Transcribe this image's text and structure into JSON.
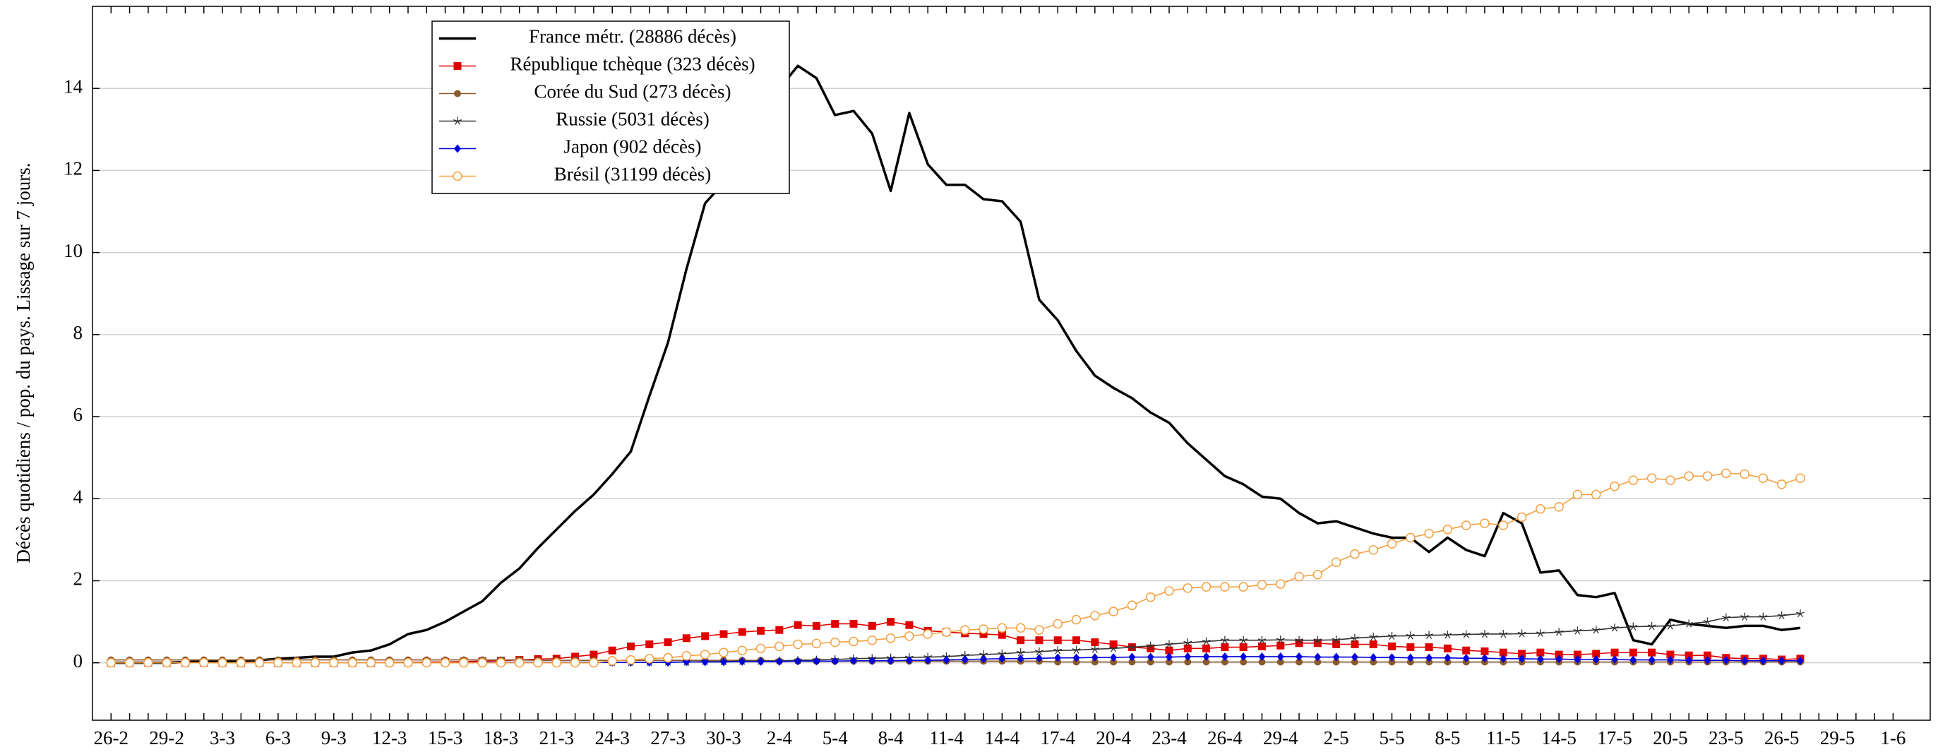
{
  "chart_data": {
    "type": "line",
    "y_label": "Décès quotidiens / pop. du pays. Lissage sur 7 jours.",
    "categories": [
      "26-2",
      null,
      null,
      "29-2",
      null,
      null,
      "3-3",
      null,
      null,
      "6-3",
      null,
      null,
      "9-3",
      null,
      null,
      "12-3",
      null,
      null,
      "15-3",
      null,
      null,
      "18-3",
      null,
      null,
      "21-3",
      null,
      null,
      "24-3",
      null,
      null,
      "27-3",
      null,
      null,
      "30-3",
      null,
      null,
      "2-4",
      null,
      null,
      "5-4",
      null,
      null,
      "8-4",
      null,
      null,
      "11-4",
      null,
      null,
      "14-4",
      null,
      null,
      "17-4",
      null,
      null,
      "20-4",
      null,
      null,
      "23-4",
      null,
      null,
      "26-4",
      null,
      null,
      "29-4",
      null,
      null,
      "2-5",
      null,
      null,
      "5-5",
      null,
      null,
      "8-5",
      null,
      null,
      "11-5",
      null,
      null,
      "14-5",
      null,
      null,
      "17-5",
      null,
      null,
      "20-5",
      null,
      null,
      "23-5",
      null,
      null,
      "26-5",
      null,
      null,
      "29-5",
      null,
      null,
      "1-6"
    ],
    "ylim": [
      -1.4,
      16
    ],
    "yticks": [
      0,
      2,
      4,
      6,
      8,
      10,
      12,
      14
    ],
    "grid": true,
    "legend": "upper left",
    "series": [
      {
        "name": "France métr. (28886 décès)",
        "color": "#000000",
        "marker": "none",
        "values": [
          0,
          0,
          0,
          0,
          0.02,
          0.03,
          0.03,
          0.05,
          0.06,
          0.1,
          0.12,
          0.15,
          0.15,
          0.25,
          0.3,
          0.45,
          0.7,
          0.8,
          1.0,
          1.25,
          1.5,
          1.95,
          2.3,
          2.8,
          3.25,
          3.7,
          4.1,
          4.6,
          5.15,
          6.5,
          7.8,
          9.6,
          11.2,
          11.7,
          12.4,
          13.2,
          14.0,
          14.55,
          14.25,
          13.35,
          13.45,
          12.9,
          11.5,
          13.4,
          12.15,
          11.65,
          11.65,
          11.3,
          11.25,
          10.75,
          8.85,
          8.35,
          7.6,
          7.0,
          6.7,
          6.45,
          6.1,
          5.85,
          5.35,
          4.95,
          4.55,
          4.35,
          4.05,
          4.0,
          3.65,
          3.4,
          3.45,
          3.3,
          3.15,
          3.05,
          3.05,
          2.7,
          3.05,
          2.75,
          2.6,
          3.65,
          3.4,
          2.2,
          2.25,
          1.65,
          1.6,
          1.7,
          0.55,
          0.45,
          1.05,
          0.95,
          0.9,
          0.85,
          0.9,
          0.9,
          0.8,
          0.85,
          null,
          null,
          null,
          null,
          null
        ]
      },
      {
        "name": "République tchèque (323 décès)",
        "color": "#e00000",
        "marker": "square",
        "values": [
          0,
          0,
          0,
          0,
          0,
          0,
          0,
          0,
          0,
          0,
          0,
          0,
          0,
          0,
          0,
          0.01,
          0.01,
          0.02,
          0.02,
          0.03,
          0.04,
          0.05,
          0.07,
          0.09,
          0.1,
          0.15,
          0.2,
          0.3,
          0.4,
          0.45,
          0.5,
          0.6,
          0.65,
          0.7,
          0.75,
          0.78,
          0.8,
          0.92,
          0.9,
          0.95,
          0.95,
          0.9,
          1.0,
          0.92,
          0.78,
          0.75,
          0.72,
          0.7,
          0.68,
          0.55,
          0.55,
          0.55,
          0.55,
          0.5,
          0.45,
          0.38,
          0.35,
          0.3,
          0.35,
          0.35,
          0.38,
          0.38,
          0.4,
          0.42,
          0.48,
          0.48,
          0.45,
          0.45,
          0.45,
          0.4,
          0.38,
          0.38,
          0.35,
          0.3,
          0.28,
          0.25,
          0.22,
          0.25,
          0.2,
          0.2,
          0.22,
          0.25,
          0.25,
          0.25,
          0.2,
          0.18,
          0.18,
          0.12,
          0.1,
          0.1,
          0.08,
          0.1,
          null,
          null,
          null,
          null,
          null
        ]
      },
      {
        "name": "Corée du Sud (273 décès)",
        "color": "#8b5a2b",
        "marker": "circle",
        "values": [
          0.07,
          0.07,
          0.07,
          0.07,
          0.07,
          0.07,
          0.07,
          0.07,
          0.07,
          0.07,
          0.07,
          0.07,
          0.07,
          0.07,
          0.07,
          0.07,
          0.07,
          0.07,
          0.07,
          0.07,
          0.07,
          0.07,
          0.07,
          0.06,
          0.06,
          0.06,
          0.06,
          0.06,
          0.06,
          0.06,
          0.06,
          0.06,
          0.06,
          0.06,
          0.06,
          0.06,
          0.04,
          0.04,
          0.04,
          0.04,
          0.04,
          0.04,
          0.04,
          0.04,
          0.04,
          0.04,
          0.04,
          0.04,
          0.04,
          0.04,
          0.04,
          0.02,
          0.02,
          0.02,
          0.02,
          0.02,
          0.02,
          0.02,
          0.02,
          0.02,
          0.02,
          0.02,
          0.02,
          0.02,
          0.02,
          0.02,
          0.02,
          0.02,
          0.02,
          0.02,
          0.02,
          0.02,
          0.02,
          0.02,
          0.02,
          0.02,
          0.02,
          0.02,
          0.02,
          0.02,
          0.02,
          0.02,
          0.02,
          0.02,
          0.02,
          0.02,
          0.02,
          0.02,
          0.02,
          0.02,
          0.02,
          0.02,
          null,
          null,
          null,
          null,
          null
        ]
      },
      {
        "name": "Russie (5031 décès)",
        "color": "#333333",
        "marker": "star",
        "values": [
          0,
          0,
          0,
          0,
          0,
          0,
          0,
          0,
          0,
          0,
          0,
          0,
          0,
          0,
          0,
          0,
          0,
          0,
          0,
          0,
          0,
          0,
          0,
          0,
          0,
          0.01,
          0.01,
          0.01,
          0.01,
          0.01,
          0.02,
          0.02,
          0.03,
          0.03,
          0.04,
          0.04,
          0.05,
          0.06,
          0.07,
          0.08,
          0.1,
          0.11,
          0.12,
          0.13,
          0.14,
          0.15,
          0.18,
          0.2,
          0.22,
          0.25,
          0.27,
          0.3,
          0.31,
          0.33,
          0.35,
          0.38,
          0.41,
          0.45,
          0.49,
          0.52,
          0.55,
          0.55,
          0.55,
          0.56,
          0.55,
          0.55,
          0.56,
          0.6,
          0.63,
          0.65,
          0.66,
          0.67,
          0.68,
          0.69,
          0.7,
          0.7,
          0.71,
          0.72,
          0.75,
          0.78,
          0.8,
          0.85,
          0.88,
          0.89,
          0.9,
          0.95,
          1.0,
          1.1,
          1.12,
          1.12,
          1.15,
          1.2,
          null,
          null,
          null,
          null,
          null
        ]
      },
      {
        "name": "Japon (902 décès)",
        "color": "#0000e0",
        "marker": "diamond",
        "values": [
          0,
          0,
          0,
          0,
          0,
          0,
          0,
          0,
          0,
          0,
          0,
          0,
          0,
          0,
          0,
          0,
          0,
          0,
          0,
          0,
          0.01,
          0.01,
          0.01,
          0.01,
          0.01,
          0.01,
          0.01,
          0.01,
          0.01,
          0.01,
          0.01,
          0.02,
          0.02,
          0.02,
          0.03,
          0.03,
          0.03,
          0.04,
          0.04,
          0.04,
          0.05,
          0.05,
          0.05,
          0.06,
          0.06,
          0.07,
          0.08,
          0.09,
          0.1,
          0.1,
          0.11,
          0.12,
          0.12,
          0.13,
          0.13,
          0.14,
          0.14,
          0.14,
          0.15,
          0.15,
          0.15,
          0.15,
          0.15,
          0.15,
          0.15,
          0.14,
          0.14,
          0.14,
          0.13,
          0.13,
          0.12,
          0.12,
          0.12,
          0.11,
          0.11,
          0.1,
          0.1,
          0.09,
          0.09,
          0.08,
          0.08,
          0.08,
          0.07,
          0.07,
          0.07,
          0.06,
          0.06,
          0.06,
          0.05,
          0.05,
          0.05,
          0.05,
          null,
          null,
          null,
          null,
          null
        ]
      },
      {
        "name": "Brésil (31199 décès)",
        "color": "#f5a040",
        "marker": "open-circle",
        "values": [
          0,
          0,
          0,
          0,
          0,
          0,
          0,
          0,
          0,
          0,
          0,
          0,
          0,
          0,
          0,
          0,
          0,
          0,
          0,
          0,
          0,
          0,
          0,
          0,
          0,
          0,
          0,
          0.05,
          0.07,
          0.1,
          0.12,
          0.17,
          0.2,
          0.25,
          0.3,
          0.35,
          0.4,
          0.45,
          0.47,
          0.5,
          0.52,
          0.55,
          0.6,
          0.65,
          0.7,
          0.75,
          0.8,
          0.82,
          0.85,
          0.85,
          0.8,
          0.95,
          1.05,
          1.15,
          1.25,
          1.4,
          1.6,
          1.75,
          1.82,
          1.85,
          1.85,
          1.85,
          1.9,
          1.92,
          2.1,
          2.15,
          2.45,
          2.65,
          2.75,
          2.9,
          3.05,
          3.15,
          3.25,
          3.35,
          3.4,
          3.35,
          3.55,
          3.75,
          3.8,
          4.1,
          4.1,
          4.3,
          4.45,
          4.5,
          4.45,
          4.55,
          4.55,
          4.62,
          4.6,
          4.5,
          4.35,
          4.5,
          null,
          null,
          null,
          null,
          null
        ]
      }
    ]
  }
}
